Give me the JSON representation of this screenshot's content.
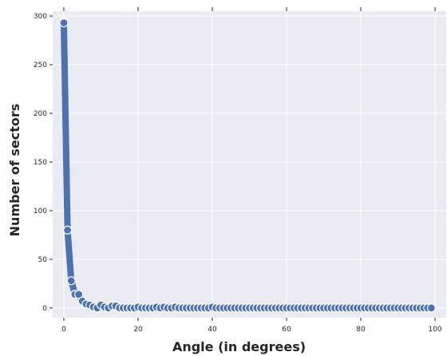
{
  "chart_data": {
    "type": "line",
    "xlabel": "Angle (in degrees)",
    "ylabel": "Number of sectors",
    "xlim": [
      -3,
      103
    ],
    "ylim": [
      -10,
      305
    ],
    "xticks": [
      0,
      20,
      40,
      60,
      80,
      100
    ],
    "yticks": [
      0,
      50,
      100,
      150,
      200,
      250,
      300
    ],
    "grid": true,
    "colors": {
      "background": "#EAEAF2",
      "grid": "#FFFFFF",
      "line": "#4C72B0",
      "marker": "#4C72B0",
      "marker_edge": "#FFFFFF"
    },
    "series": [
      {
        "x": [
          0,
          1,
          2,
          3,
          4,
          5,
          6,
          7,
          8,
          9,
          10,
          11,
          12,
          13,
          14,
          15,
          16,
          17,
          18,
          19,
          20,
          21,
          22,
          23,
          24,
          25,
          26,
          27,
          28,
          29,
          30,
          31,
          32,
          33,
          34,
          35,
          36,
          37,
          38,
          39,
          40,
          41,
          42,
          43,
          44,
          45,
          46,
          47,
          48,
          49,
          50,
          51,
          52,
          53,
          54,
          55,
          56,
          57,
          58,
          59,
          60,
          61,
          62,
          63,
          64,
          65,
          66,
          67,
          68,
          69,
          70,
          71,
          72,
          73,
          74,
          75,
          76,
          77,
          78,
          79,
          80,
          81,
          82,
          83,
          84,
          85,
          86,
          87,
          88,
          89,
          90,
          91,
          92,
          93,
          94,
          95,
          96,
          97,
          98,
          99
        ],
        "y": [
          293,
          80,
          28,
          14,
          14,
          7,
          4,
          3,
          1,
          0,
          3,
          1,
          0,
          2,
          2,
          0,
          0,
          0,
          0,
          0,
          1,
          0,
          0,
          0,
          0,
          1,
          0,
          1,
          0,
          0,
          1,
          0,
          0,
          0,
          0,
          0,
          0,
          0,
          0,
          0,
          1,
          0,
          0,
          0,
          0,
          0,
          0,
          0,
          0,
          0,
          0,
          0,
          0,
          0,
          0,
          0,
          0,
          0,
          0,
          0,
          0,
          0,
          0,
          0,
          0,
          0,
          0,
          0,
          0,
          0,
          0,
          0,
          0,
          0,
          0,
          0,
          0,
          0,
          0,
          0,
          0,
          0,
          0,
          0,
          0,
          0,
          0,
          0,
          0,
          0,
          0,
          0,
          0,
          0,
          0,
          0,
          0,
          0,
          0,
          0
        ]
      }
    ]
  }
}
